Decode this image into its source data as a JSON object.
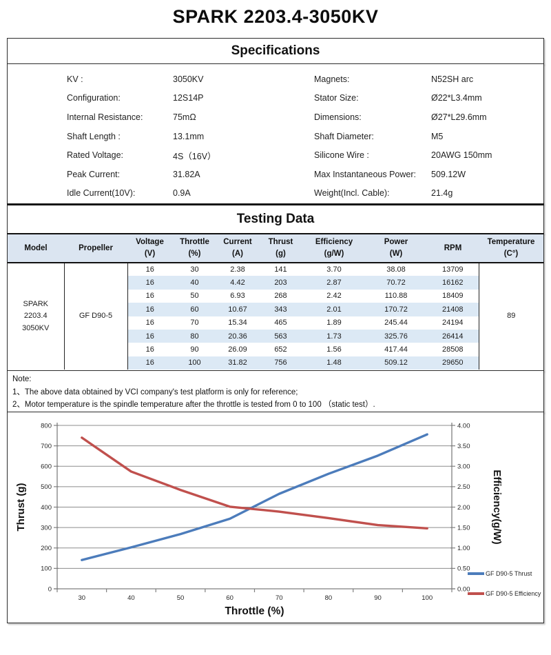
{
  "page_title": "SPARK 2203.4-3050KV",
  "specifications": {
    "title": "Specifications",
    "left": [
      {
        "label": "KV :",
        "value": "3050KV"
      },
      {
        "label": "Configuration:",
        "value": "12S14P"
      },
      {
        "label": "Internal Resistance:",
        "value": "75mΩ"
      },
      {
        "label": "Shaft Length :",
        "value": "13.1mm"
      },
      {
        "label": "Rated Voltage:",
        "value": "4S（16V）"
      },
      {
        "label": "Peak Current:",
        "value": "31.82A"
      },
      {
        "label": "Idle Current(10V):",
        "value": "0.9A"
      }
    ],
    "right": [
      {
        "label": "Magnets:",
        "value": "N52SH  arc"
      },
      {
        "label": "Stator Size:",
        "value": "Ø22*L3.4mm"
      },
      {
        "label": "Dimensions:",
        "value": "Ø27*L29.6mm"
      },
      {
        "label": "Shaft Diameter:",
        "value": "M5"
      },
      {
        "label": "Silicone Wire :",
        "value": "20AWG 150mm"
      },
      {
        "label": "Max Instantaneous Power:",
        "value": "509.12W"
      },
      {
        "label": "Weight(Incl. Cable):",
        "value": "21.4g"
      }
    ]
  },
  "testing": {
    "title": "Testing Data",
    "header_bg": "#dbe5f1",
    "stripe_bg": "#dce9f5",
    "columns": [
      {
        "line1": "Model",
        "line2": ""
      },
      {
        "line1": "Propeller",
        "line2": ""
      },
      {
        "line1": "Voltage",
        "line2": "(V)"
      },
      {
        "line1": "Throttle",
        "line2": "(%)"
      },
      {
        "line1": "Current",
        "line2": "(A)"
      },
      {
        "line1": "Thrust",
        "line2": "(g)"
      },
      {
        "line1": "Efficiency",
        "line2": "(g/W)"
      },
      {
        "line1": "Power",
        "line2": "(W)"
      },
      {
        "line1": "RPM",
        "line2": ""
      },
      {
        "line1": "Temperature",
        "line2": "(C°)"
      }
    ],
    "model_lines": [
      "SPARK",
      "2203.4",
      "3050KV"
    ],
    "propeller": "GF D90-5",
    "temperature": "89",
    "rows": [
      [
        "16",
        "30",
        "2.38",
        "141",
        "3.70",
        "38.08",
        "13709"
      ],
      [
        "16",
        "40",
        "4.42",
        "203",
        "2.87",
        "70.72",
        "16162"
      ],
      [
        "16",
        "50",
        "6.93",
        "268",
        "2.42",
        "110.88",
        "18409"
      ],
      [
        "16",
        "60",
        "10.67",
        "343",
        "2.01",
        "170.72",
        "21408"
      ],
      [
        "16",
        "70",
        "15.34",
        "465",
        "1.89",
        "245.44",
        "24194"
      ],
      [
        "16",
        "80",
        "20.36",
        "563",
        "1.73",
        "325.76",
        "26414"
      ],
      [
        "16",
        "90",
        "26.09",
        "652",
        "1.56",
        "417.44",
        "28508"
      ],
      [
        "16",
        "100",
        "31.82",
        "756",
        "1.48",
        "509.12",
        "29650"
      ]
    ]
  },
  "note": {
    "title": "Note:",
    "line1": "1、The above data obtained by VCI company's test platform is only for reference;",
    "line2": "2、Motor temperature is the spindle temperature after the throttle is tested from 0 to 100 （static test）."
  },
  "chart_data": {
    "type": "line",
    "x": [
      30,
      40,
      50,
      60,
      70,
      80,
      90,
      100
    ],
    "xlabel": "Throttle  (%)",
    "series": [
      {
        "name": "GF D90-5 Thrust",
        "axis": "left",
        "color": "#4c7cbb",
        "values": [
          141,
          203,
          268,
          343,
          465,
          563,
          652,
          756
        ]
      },
      {
        "name": "GF D90-5 Efficiency",
        "axis": "right",
        "color": "#c0504d",
        "values": [
          3.7,
          2.87,
          2.42,
          2.01,
          1.89,
          1.73,
          1.56,
          1.48
        ]
      }
    ],
    "left_axis": {
      "label": "Thrust (g)",
      "min": 0,
      "max": 800,
      "step": 100,
      "decimals": 0
    },
    "right_axis": {
      "label": "Efficiency(g/W)",
      "min": 0,
      "max": 4,
      "step": 0.5,
      "decimals": 2
    },
    "grid": true,
    "grid_color": "#8c8c8c",
    "axis_color": "#7f7f7f",
    "legend_position": "right-bottom"
  }
}
